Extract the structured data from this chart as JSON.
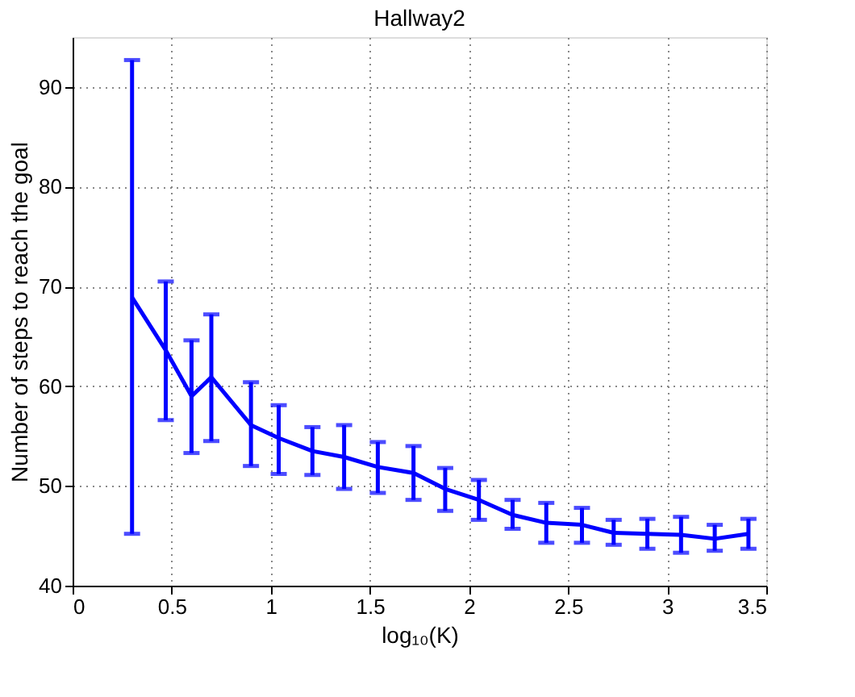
{
  "chart_data": {
    "type": "line",
    "title": "Hallway2",
    "xlabel": "log₁₀(K)",
    "ylabel": "Number of steps to reach the goal",
    "x": [
      0.3,
      0.47,
      0.6,
      0.7,
      0.9,
      1.04,
      1.21,
      1.37,
      1.54,
      1.72,
      1.88,
      2.05,
      2.22,
      2.39,
      2.57,
      2.73,
      2.9,
      3.07,
      3.24,
      3.41
    ],
    "series": [
      {
        "color": "#0000ff",
        "values": [
          68.9,
          63.6,
          59.0,
          60.9,
          56.1,
          54.8,
          53.5,
          52.9,
          51.9,
          51.3,
          49.7,
          48.6,
          47.1,
          46.3,
          46.1,
          45.3,
          45.2,
          45.1,
          44.7,
          45.2
        ],
        "errors": [
          [
            45.2,
            92.7
          ],
          [
            56.6,
            70.5
          ],
          [
            53.3,
            64.6
          ],
          [
            54.5,
            67.2
          ],
          [
            52.0,
            60.4
          ],
          [
            51.2,
            58.1
          ],
          [
            51.1,
            55.9
          ],
          [
            49.7,
            56.1
          ],
          [
            49.3,
            54.4
          ],
          [
            48.6,
            54.0
          ],
          [
            47.5,
            51.8
          ],
          [
            46.6,
            50.6
          ],
          [
            45.7,
            48.6
          ],
          [
            44.3,
            48.3
          ],
          [
            44.3,
            47.8
          ],
          [
            44.1,
            46.6
          ],
          [
            43.7,
            46.7
          ],
          [
            43.3,
            46.9
          ],
          [
            43.5,
            46.1
          ],
          [
            43.7,
            46.7
          ]
        ]
      }
    ],
    "xlim": [
      0,
      3.5
    ],
    "xticks": [
      0,
      0.5,
      1,
      1.5,
      2,
      2.5,
      3,
      3.5
    ],
    "ylim": [
      40,
      95
    ],
    "yticks": [
      40,
      50,
      60,
      70,
      80,
      90
    ],
    "grid": true,
    "line_style": "solid",
    "marker": "none"
  }
}
